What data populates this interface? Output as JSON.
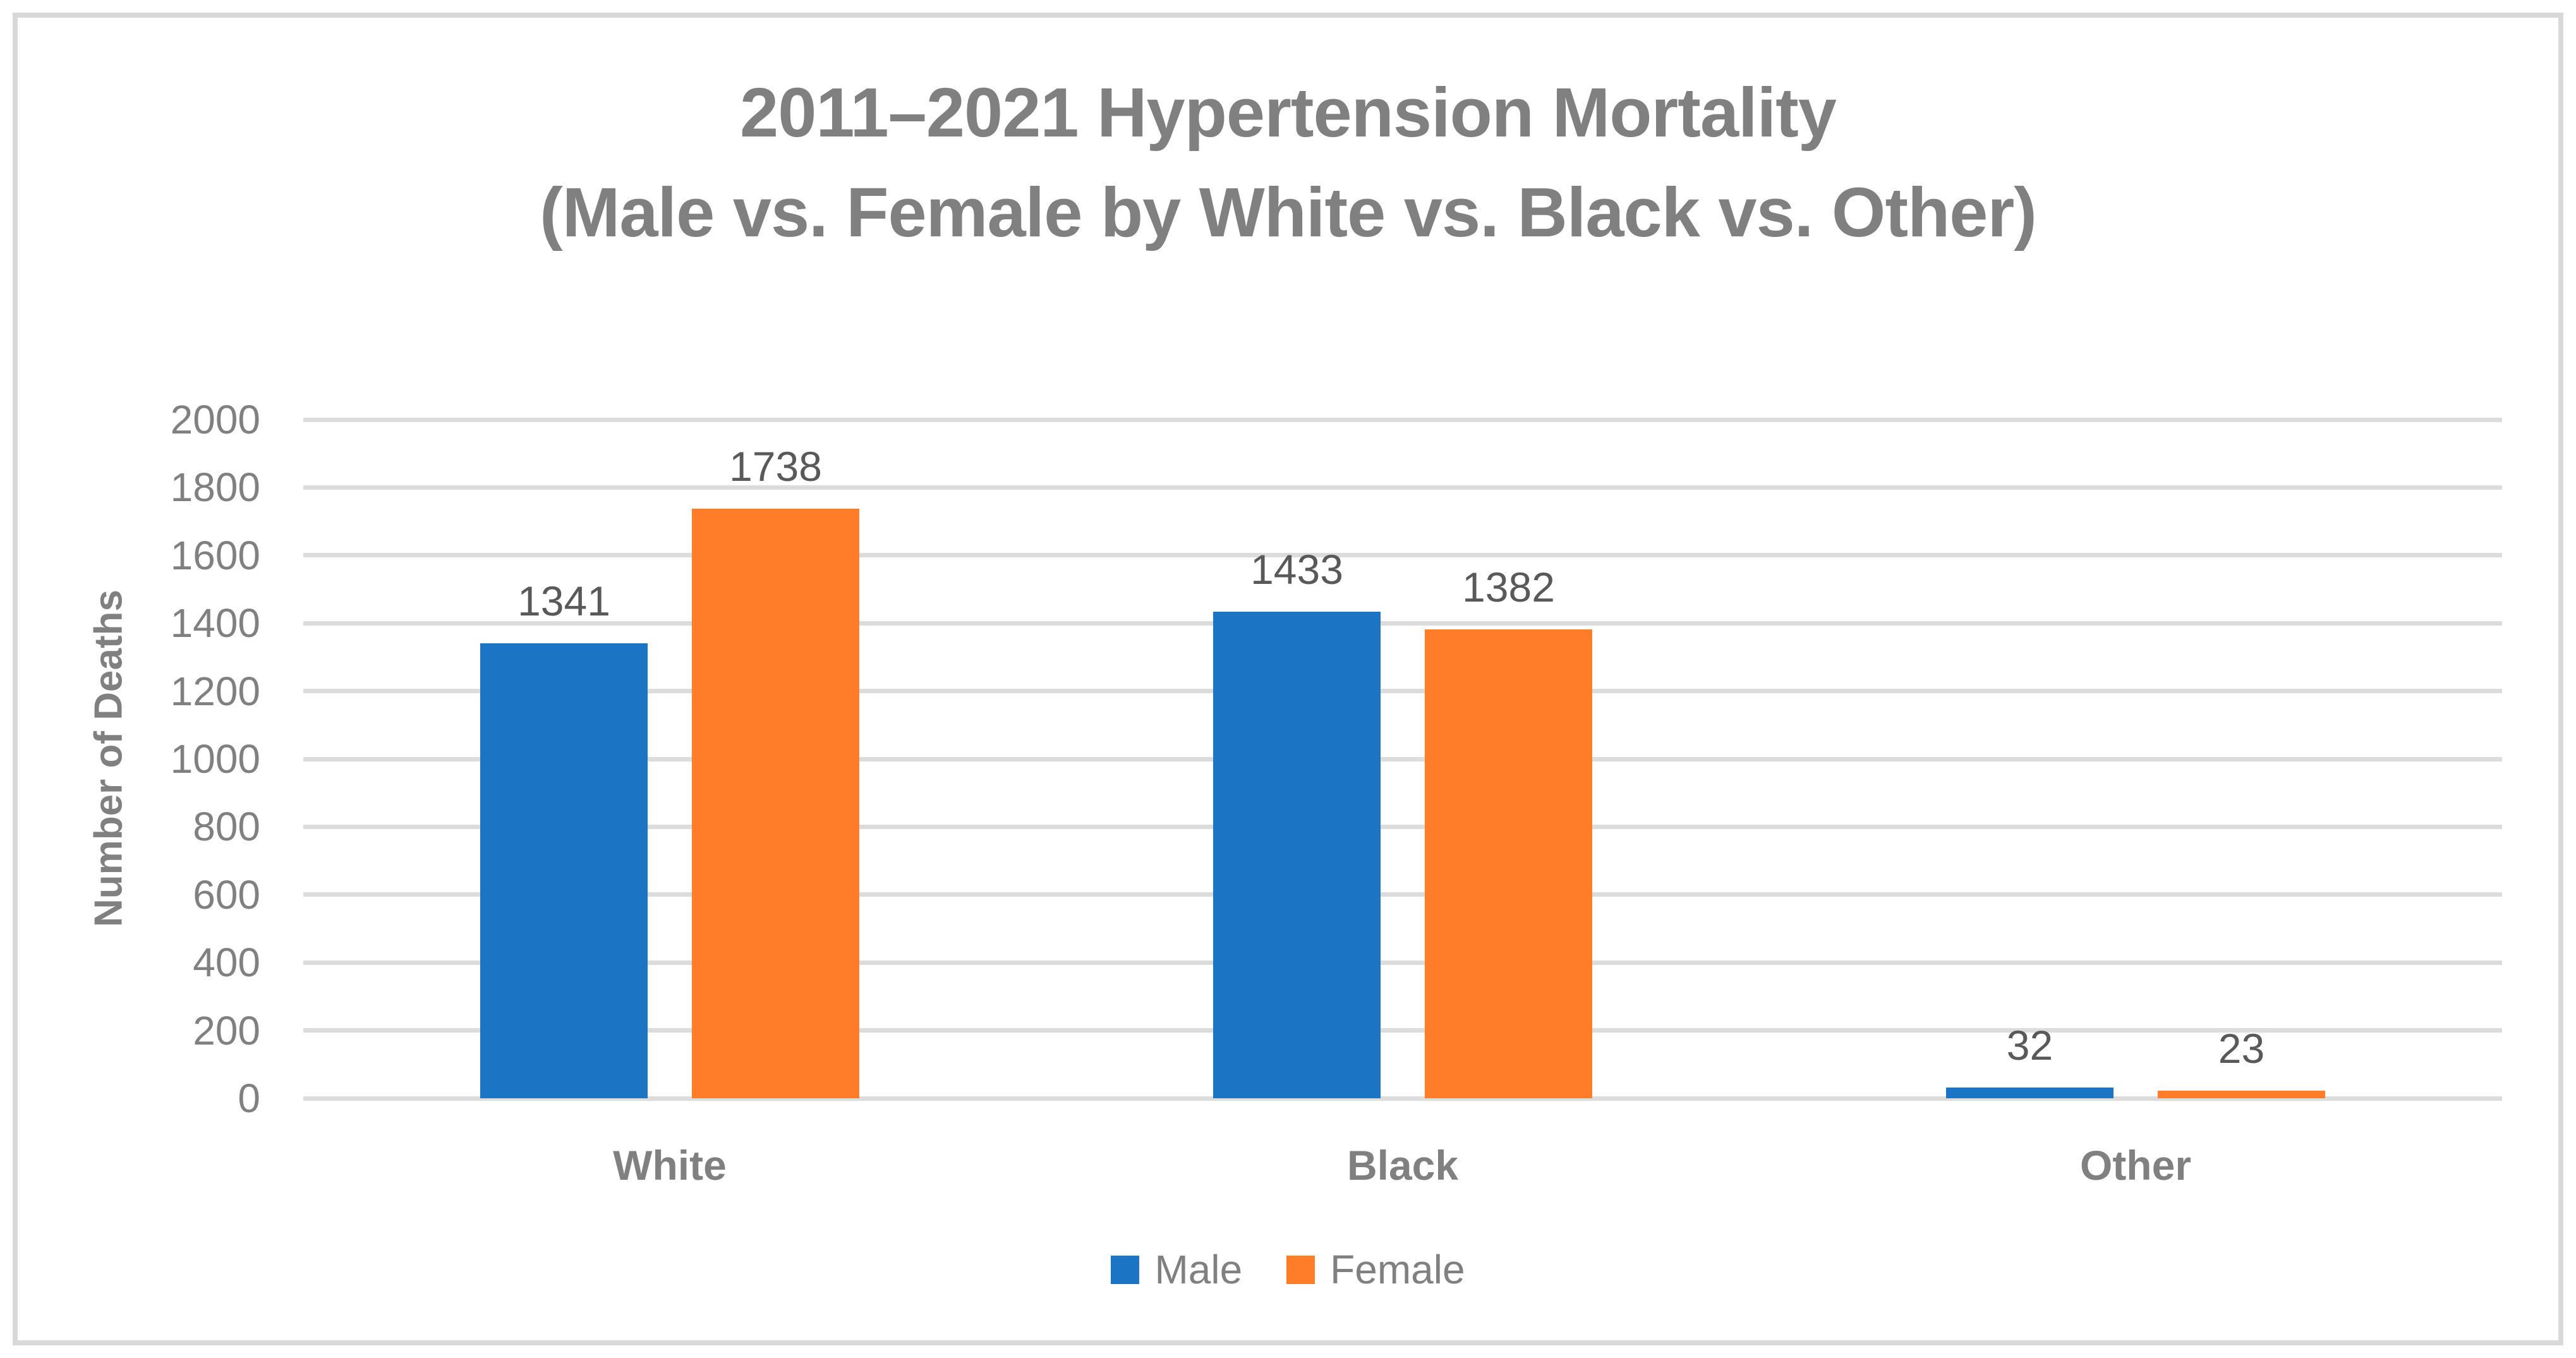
{
  "chart_data": {
    "type": "bar",
    "title_line1": "2011–2021 Hypertension Mortality",
    "title_line2": "(Male vs. Female by White vs. Black vs. Other)",
    "ylabel": "Number of Deaths",
    "xlabel": "",
    "categories": [
      "White",
      "Black",
      "Other"
    ],
    "series": [
      {
        "name": "Male",
        "color": "#1b74c4",
        "values": [
          1341,
          1433,
          32
        ]
      },
      {
        "name": "Female",
        "color": "#ff7d28",
        "values": [
          1738,
          1382,
          23
        ]
      }
    ],
    "ylim": [
      0,
      2000
    ],
    "yticks": [
      0,
      200,
      400,
      600,
      800,
      1000,
      1200,
      1400,
      1600,
      1800,
      2000
    ],
    "grid": true,
    "gridline_color": "#dcdcdc",
    "frame_border_color": "#d9d9d9",
    "title_color": "#808080",
    "axis_text_color": "#808080",
    "data_labels": true,
    "data_label_color": "#595959",
    "legend_position": "bottom"
  }
}
